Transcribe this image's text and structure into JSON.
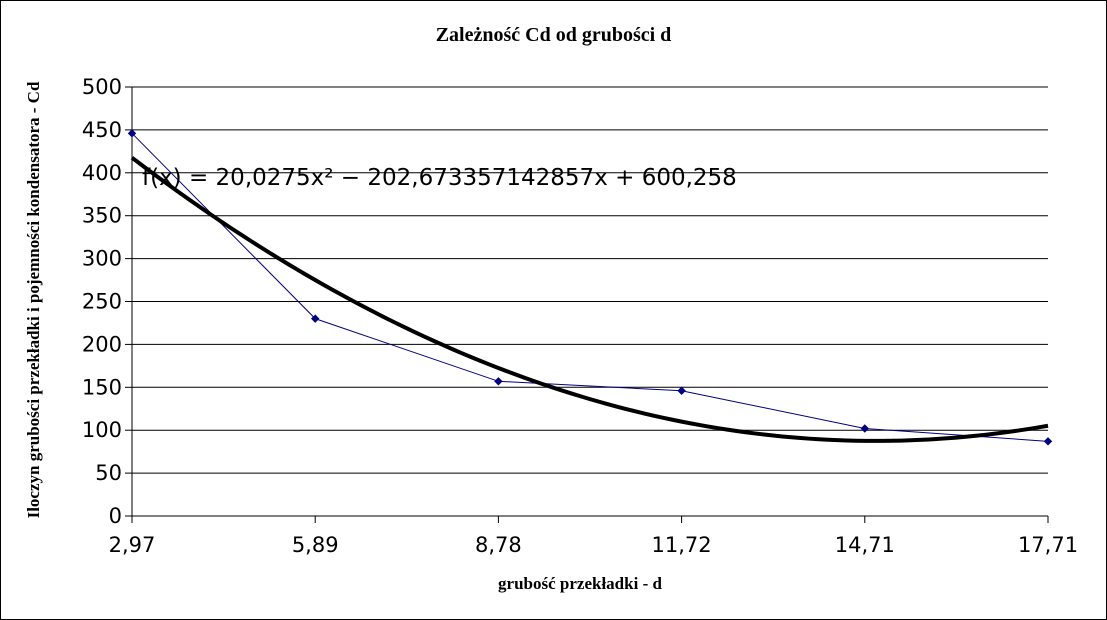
{
  "chart_data": {
    "type": "line",
    "title": "Zależność Cd od grubości d",
    "xlabel": "grubość przekładki - d",
    "ylabel": "Iloczyn grubości przekładki i pojemności kondensatora - Cd",
    "x_tick_labels": [
      "2,97",
      "5,89",
      "8,78",
      "11,72",
      "14,71",
      "17,71"
    ],
    "y_ticks": [
      0,
      50,
      100,
      150,
      200,
      250,
      300,
      350,
      400,
      450,
      500
    ],
    "ylim": [
      0,
      500
    ],
    "xlim": [
      2.97,
      17.71
    ],
    "grid": true,
    "series": [
      {
        "x": [
          2.97,
          5.89,
          8.78,
          11.72,
          14.71,
          17.71
        ],
        "y": [
          446,
          230,
          157,
          146,
          102,
          87
        ],
        "color": "#000080",
        "marker": "diamond"
      }
    ],
    "trendline": {
      "equation": "f(x) = 20,0275x² − 202,673357142857x + 600,258",
      "type": "polynomial",
      "color": "#000000"
    }
  }
}
